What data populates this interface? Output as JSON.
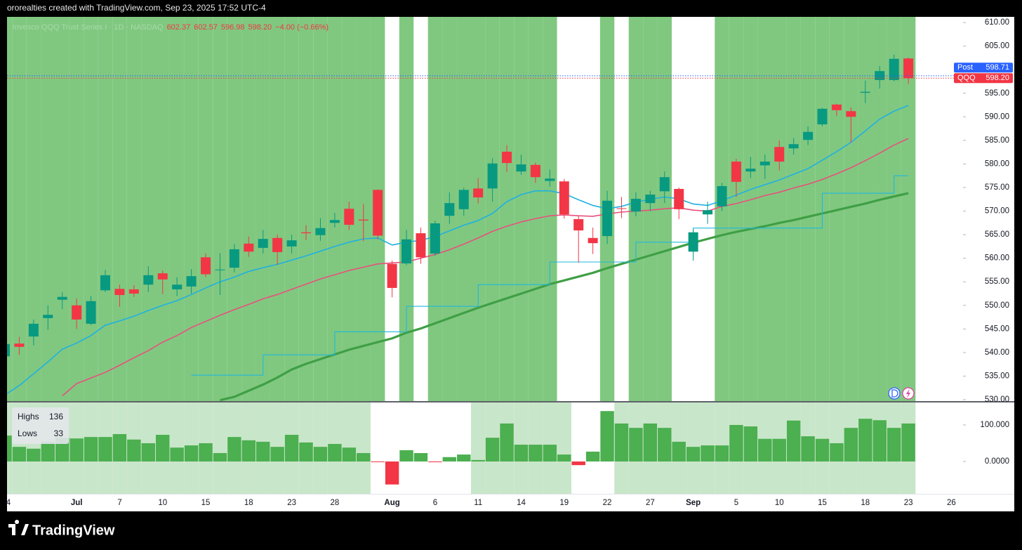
{
  "header": {
    "text": "ororealties created with TradingView.com, Sep 23, 2025 17:52 UTC-4"
  },
  "footer": {
    "brand": "TradingView"
  },
  "chart_data": [
    {
      "type": "candlestick",
      "legend": {
        "symbol": "Invesco QQQ Trust Series I · 1D · NASDAQ",
        "values": [
          "602.37",
          "602.57",
          "596.98",
          "598.20",
          "−4.00 (−0.66%)"
        ]
      },
      "categories": [
        "4",
        null,
        null,
        null,
        null,
        "Jul",
        null,
        null,
        "7",
        null,
        null,
        "10",
        null,
        null,
        "15",
        null,
        null,
        "18",
        null,
        null,
        "23",
        null,
        null,
        "28",
        null,
        null,
        null,
        "Aug",
        null,
        null,
        "6",
        null,
        null,
        "11",
        null,
        null,
        "14",
        null,
        null,
        "19",
        null,
        null,
        "22",
        null,
        null,
        "27",
        null,
        null,
        "Sep",
        null,
        null,
        "5",
        null,
        null,
        "10",
        null,
        null,
        "15",
        null,
        null,
        "18",
        null,
        null,
        "23",
        null,
        null,
        "26"
      ],
      "open": [
        539.2,
        541.9,
        543.4,
        547.3,
        551.2,
        550.0,
        546.1,
        553.2,
        553.5,
        553.4,
        554.4,
        556.8,
        553.4,
        554.0,
        560.2,
        557.5,
        558.0,
        563.1,
        562.2,
        564.3,
        562.5,
        565.5,
        564.9,
        567.5,
        570.5,
        568.2,
        574.5,
        558.8,
        558.9,
        565.3,
        561.0,
        569.0,
        570.4,
        574.8,
        574.8,
        582.6,
        578.4,
        579.8,
        576.4,
        576.3,
        568.3,
        564.3,
        564.7,
        570.6,
        569.9,
        571.7,
        574.2,
        574.7,
        561.4,
        569.3,
        571.0,
        580.5,
        578.4,
        579.7,
        583.6,
        583.3,
        585.1,
        588.4,
        592.6,
        591.2,
        595.1,
        597.8,
        597.8,
        602.37,
        null,
        null,
        null
      ],
      "high": [
        542.5,
        543.3,
        547.0,
        550.0,
        552.8,
        551.5,
        552.0,
        557.5,
        554.4,
        554.3,
        558.3,
        557.4,
        556.0,
        557.7,
        561.0,
        561.1,
        563.0,
        564.6,
        566.0,
        565.0,
        565.0,
        567.0,
        568.5,
        569.6,
        572.0,
        571.5,
        574.6,
        559.5,
        566.0,
        566.5,
        568.0,
        574.0,
        575.0,
        577.0,
        581.2,
        584.0,
        582.0,
        580.3,
        578.8,
        576.8,
        569.0,
        566.5,
        574.3,
        573.0,
        574.0,
        574.3,
        578.4,
        575.0,
        566.2,
        572.0,
        576.0,
        581.1,
        581.5,
        582.0,
        585.0,
        585.5,
        588.0,
        591.9,
        592.8,
        592.0,
        597.7,
        600.8,
        603.2,
        602.57,
        null,
        null,
        null
      ],
      "low": [
        538.5,
        539.5,
        541.5,
        544.8,
        549.2,
        545.0,
        545.8,
        552.8,
        549.7,
        551.8,
        552.8,
        552.4,
        552.0,
        552.5,
        556.0,
        552.2,
        557.0,
        560.3,
        561.0,
        558.6,
        561.0,
        563.8,
        563.7,
        566.5,
        566.0,
        563.6,
        564.0,
        551.7,
        558.5,
        558.8,
        560.5,
        567.3,
        569.0,
        571.6,
        572.0,
        578.3,
        577.7,
        576.0,
        575.2,
        568.4,
        559.1,
        560.9,
        563.0,
        568.5,
        568.9,
        570.0,
        571.7,
        568.3,
        559.5,
        567.3,
        570.0,
        573.0,
        577.0,
        576.8,
        578.6,
        582.0,
        584.0,
        588.0,
        590.2,
        584.5,
        592.9,
        596.0,
        597.5,
        596.98,
        null,
        null,
        null
      ],
      "close": [
        541.8,
        541.2,
        546.1,
        548.0,
        551.8,
        547.0,
        550.9,
        556.4,
        552.2,
        552.5,
        556.4,
        555.5,
        554.4,
        556.2,
        556.6,
        557.6,
        561.9,
        561.4,
        564.1,
        561.3,
        563.8,
        565.3,
        566.4,
        568.1,
        567.1,
        568.0,
        564.8,
        553.7,
        564.0,
        560.2,
        567.4,
        571.7,
        574.5,
        572.9,
        580.1,
        580.2,
        579.9,
        577.2,
        576.9,
        569.3,
        565.9,
        563.2,
        572.2,
        570.5,
        572.6,
        573.5,
        577.2,
        570.4,
        565.5,
        570.2,
        575.3,
        576.2,
        579.0,
        580.5,
        580.5,
        584.2,
        586.8,
        591.7,
        591.4,
        590.0,
        595.3,
        599.7,
        602.3,
        598.2,
        null,
        null,
        null
      ],
      "up_color": "#089981",
      "down_color": "#f23645",
      "shading": [
        true,
        true,
        true,
        true,
        true,
        true,
        true,
        true,
        true,
        true,
        true,
        true,
        true,
        true,
        true,
        true,
        true,
        true,
        true,
        true,
        true,
        true,
        true,
        true,
        true,
        true,
        true,
        false,
        true,
        false,
        true,
        true,
        true,
        true,
        true,
        true,
        true,
        true,
        true,
        false,
        false,
        false,
        true,
        false,
        true,
        true,
        true,
        false,
        false,
        false,
        true,
        true,
        true,
        true,
        true,
        true,
        true,
        true,
        true,
        true,
        true,
        true,
        true,
        true,
        null,
        null,
        null
      ],
      "shade_color": "#80c880",
      "lines": [
        {
          "color": "#1fb1e0",
          "width": 1.6,
          "step": false,
          "values": [
            531,
            533,
            535.5,
            538,
            540.7,
            542,
            543.6,
            545.8,
            546.7,
            547.7,
            548.9,
            550,
            551,
            552.3,
            553.7,
            555,
            556,
            557.2,
            558,
            558.7,
            559.6,
            560.5,
            561.5,
            562.5,
            563.4,
            564.1,
            564.3,
            562.8,
            563.4,
            563.8,
            564.6,
            565.8,
            567,
            568,
            569.5,
            572,
            573.5,
            574.3,
            574.3,
            573.7,
            572.4,
            571.2,
            570.5,
            571,
            571.9,
            572.5,
            573,
            572.6,
            571.5,
            571.2,
            572.2,
            573.4,
            574.6,
            575.6,
            576.6,
            577.8,
            579,
            580.8,
            582.6,
            584.6,
            587,
            589.5,
            591.2,
            592.4,
            null,
            null,
            null
          ]
        },
        {
          "color": "#e9507d",
          "width": 1.6,
          "step": false,
          "values": [
            null,
            null,
            null,
            null,
            530.8,
            533.4,
            534.6,
            535.8,
            537.3,
            538.9,
            540.4,
            542.2,
            543.6,
            545.3,
            546.6,
            547.9,
            549.1,
            550.2,
            551.4,
            552.3,
            553.4,
            554.5,
            555.6,
            556.5,
            557.4,
            558.1,
            558.8,
            559,
            559.2,
            560,
            560.8,
            561.8,
            563,
            564.3,
            565.7,
            566.8,
            567.7,
            568.4,
            569,
            569.2,
            569,
            568.9,
            569.4,
            569.8,
            570,
            570.2,
            570.5,
            570.7,
            570.2,
            570,
            571,
            571.6,
            572.4,
            573.3,
            574,
            574.9,
            575.7,
            576.7,
            577.9,
            579.2,
            580.7,
            582.3,
            584,
            585.4,
            null,
            null,
            null
          ]
        },
        {
          "color": "#3f9f45",
          "width": 3.2,
          "step": false,
          "values": [
            null,
            null,
            null,
            null,
            null,
            null,
            null,
            null,
            null,
            null,
            null,
            null,
            null,
            null,
            null,
            529.9,
            530.6,
            531.9,
            533.2,
            534.7,
            536.4,
            537.6,
            538.6,
            539.6,
            540.6,
            541.4,
            542.2,
            543,
            544.2,
            545.1,
            546.2,
            547.3,
            548.4,
            549.5,
            550.5,
            551.5,
            552.5,
            553.5,
            554.5,
            555.3,
            556.1,
            556.9,
            557.9,
            558.8,
            559.7,
            560.6,
            561.5,
            562.4,
            563.3,
            564.1,
            564.9,
            565.6,
            566.2,
            566.8,
            567.5,
            568.1,
            568.8,
            569.5,
            570.2,
            570.9,
            571.6,
            572.4,
            573.1,
            573.8,
            null,
            null,
            null
          ]
        },
        {
          "color": "#1fb8dc",
          "width": 1.1,
          "step": true,
          "values": [
            null,
            null,
            null,
            null,
            null,
            null,
            null,
            null,
            null,
            null,
            null,
            null,
            null,
            535.2,
            535.2,
            535.2,
            535.2,
            535.2,
            539.5,
            539.5,
            539.5,
            539.5,
            539.5,
            544.4,
            544.4,
            544.4,
            544.4,
            544.4,
            549.8,
            549.8,
            549.8,
            549.8,
            549.8,
            554.4,
            554.4,
            554.4,
            554.4,
            554.4,
            559.2,
            559.2,
            559.2,
            559.2,
            559.2,
            559.2,
            563.4,
            563.4,
            563.4,
            563.4,
            566.4,
            566.4,
            566.4,
            566.4,
            566.4,
            566.4,
            566.4,
            566.4,
            566.4,
            573.8,
            573.8,
            573.8,
            573.8,
            573.8,
            577.5,
            577.5,
            null,
            null,
            null
          ]
        }
      ],
      "price_lines": [
        {
          "name": "Post",
          "value": 598.71,
          "label": "598.71",
          "color": "#2962ff"
        },
        {
          "name": "QQQ",
          "value": 598.2,
          "label": "598.20",
          "color": "#f23645"
        }
      ],
      "ylim": [
        529.7,
        611.2
      ],
      "yticks": [
        {
          "value": 530,
          "label": "530.00"
        },
        {
          "value": 535,
          "label": "535.00"
        },
        {
          "value": 540,
          "label": "540.00"
        },
        {
          "value": 545,
          "label": "545.00"
        },
        {
          "value": 550,
          "label": "550.00"
        },
        {
          "value": 555,
          "label": "555.00"
        },
        {
          "value": 560,
          "label": "560.00"
        },
        {
          "value": 565,
          "label": "565.00"
        },
        {
          "value": 570,
          "label": "570.00"
        },
        {
          "value": 575,
          "label": "575.00"
        },
        {
          "value": 580,
          "label": "580.00"
        },
        {
          "value": 585,
          "label": "585.00"
        },
        {
          "value": 590,
          "label": "590.00"
        },
        {
          "value": 595,
          "label": "595.00"
        },
        {
          "value": 600,
          "label": "600.00"
        },
        {
          "value": 605,
          "label": "605.00"
        },
        {
          "value": 610,
          "label": "610.00"
        }
      ],
      "grid": false
    },
    {
      "type": "bar",
      "legend": [
        {
          "name": "Highs",
          "value": 136
        },
        {
          "name": "Lows",
          "value": 33
        }
      ],
      "values": [
        71,
        40,
        35,
        54,
        65,
        63,
        67,
        67,
        75,
        60,
        50,
        73,
        38,
        44,
        50,
        23,
        67,
        58,
        54,
        40,
        73,
        52,
        40,
        48,
        38,
        23,
        -1,
        -63,
        31,
        23,
        -2,
        12,
        19,
        4,
        65,
        104,
        46,
        46,
        46,
        19,
        -10,
        27,
        138,
        104,
        92,
        104,
        92,
        54,
        40,
        44,
        44,
        100,
        96,
        62,
        62,
        112,
        69,
        62,
        50,
        92,
        117,
        113,
        92,
        104,
        null,
        null,
        null
      ],
      "up_color": "#4caf50",
      "down_color": "#f23645",
      "shading": [
        true,
        true,
        true,
        true,
        true,
        true,
        true,
        true,
        true,
        true,
        true,
        true,
        true,
        true,
        true,
        true,
        true,
        true,
        true,
        true,
        true,
        true,
        true,
        true,
        true,
        true,
        false,
        false,
        false,
        false,
        false,
        false,
        false,
        true,
        true,
        true,
        true,
        true,
        true,
        true,
        false,
        false,
        false,
        true,
        true,
        true,
        true,
        true,
        true,
        true,
        true,
        true,
        true,
        true,
        true,
        true,
        true,
        true,
        true,
        true,
        true,
        true,
        true,
        true,
        null,
        null,
        null
      ],
      "shade_color": "#c8e6c9",
      "ylim": [
        -88.5,
        161.5
      ],
      "yticks": [
        {
          "value": 100,
          "label": "100.000"
        },
        {
          "value": 0,
          "label": "0.0000"
        }
      ],
      "grid": false
    }
  ]
}
